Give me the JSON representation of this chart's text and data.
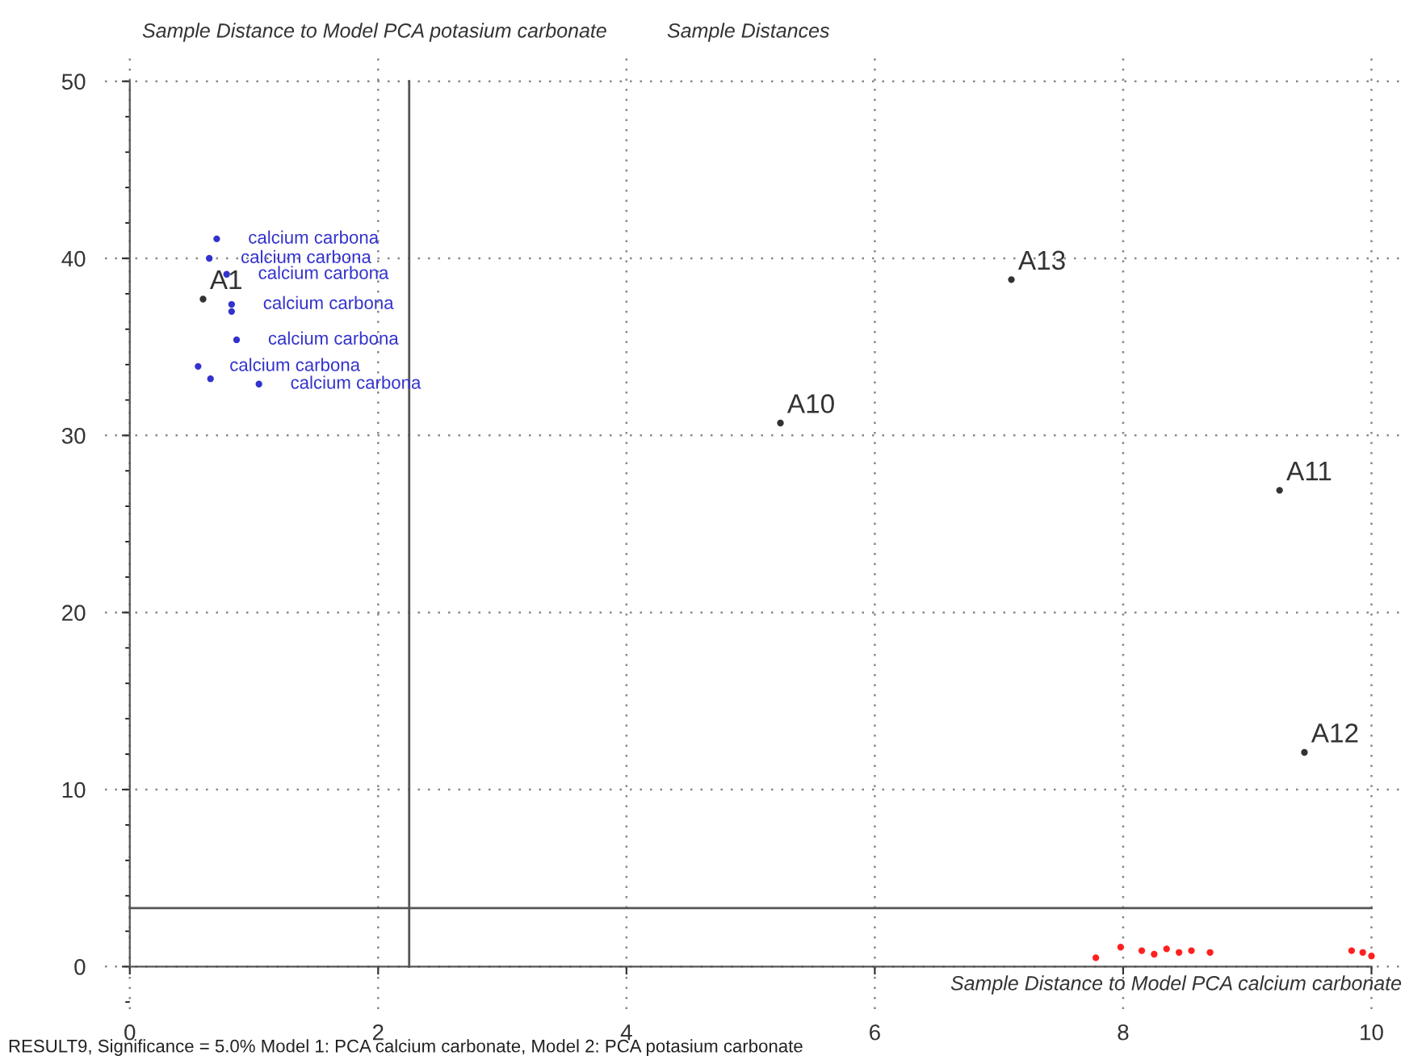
{
  "chart_data": {
    "type": "scatter",
    "title": "Sample Distances",
    "xlabel": "Sample Distance to Model PCA calcium carbonate",
    "ylabel": "Sample Distance to Model PCA potasium carbonate",
    "xlim": [
      -0.2,
      10.27
    ],
    "ylim": [
      -2.4,
      51.4
    ],
    "xticks": [
      0,
      2,
      4,
      6,
      8,
      10
    ],
    "yticks": [
      0,
      10,
      20,
      30,
      40,
      50
    ],
    "grid": true,
    "marker": "circle",
    "legend": false,
    "series": [
      {
        "color": "#3333cc",
        "x": [
          0.7,
          0.64,
          0.78,
          0.82,
          0.82,
          0.86,
          0.55,
          0.65,
          1.04
        ],
        "values": [
          41.1,
          40.0,
          39.1,
          37.4,
          37.0,
          35.4,
          33.9,
          33.2,
          32.9
        ]
      },
      {
        "color": "#ff2020",
        "x": [
          7.78,
          7.98,
          8.15,
          8.25,
          8.35,
          8.45,
          8.55,
          8.7,
          9.84,
          9.93,
          10.0
        ],
        "values": [
          0.5,
          1.1,
          0.9,
          0.7,
          1.0,
          0.8,
          0.9,
          0.8,
          0.9,
          0.8,
          0.6
        ]
      },
      {
        "color": "#333333",
        "x": [
          0.59,
          5.24,
          7.1,
          9.26,
          9.46
        ],
        "values": [
          37.7,
          30.7,
          38.8,
          26.9,
          12.1
        ]
      }
    ],
    "ref_lines": [
      {
        "axis": "x",
        "value": 2.25,
        "color": "#555555",
        "line_style": "solid"
      },
      {
        "axis": "y",
        "value": 3.3,
        "color": "#555555",
        "line_style": "solid"
      }
    ],
    "annotations": [
      {
        "text": "calcium carbona",
        "x": 0.7,
        "y": 41.1
      },
      {
        "text": "calcium carbona",
        "x": 0.64,
        "y": 40.0
      },
      {
        "text": "calcium carbona",
        "x": 0.78,
        "y": 39.1
      },
      {
        "text": "calcium carbona",
        "x": 0.82,
        "y": 37.4
      },
      {
        "text": "calcium carbona",
        "x": 0.86,
        "y": 35.4
      },
      {
        "text": "calcium carbona",
        "x": 0.55,
        "y": 33.9
      },
      {
        "text": "calcium carbona",
        "x": 1.04,
        "y": 32.9
      },
      {
        "text": "A1",
        "x": 0.59,
        "y": 37.7
      },
      {
        "text": "A10",
        "x": 5.24,
        "y": 30.7
      },
      {
        "text": "A13",
        "x": 7.1,
        "y": 38.8
      },
      {
        "text": "A11",
        "x": 9.26,
        "y": 26.9
      },
      {
        "text": "A12",
        "x": 9.46,
        "y": 12.1
      },
      "RESULT9, Significance = 5.0% Model 1: PCA calcium carbonate, Model 2: PCA potasium carbonate"
    ]
  }
}
